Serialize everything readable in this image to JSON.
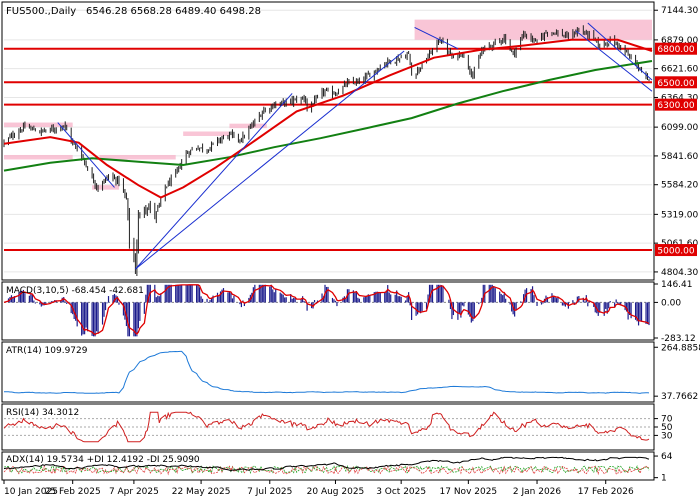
{
  "chart_data": {
    "type": "candlestick",
    "symbol": "FUS500.,Daily",
    "ohlc_text": "6546.28 6568.28 6489.40 6498.28",
    "x_range": [
      "2025-01-10",
      "2026-03-20"
    ],
    "x_ticks": [
      {
        "date": "2025-01-10",
        "label": "10 Jan 2025"
      },
      {
        "date": "2025-02-25",
        "label": "25 Feb 2025"
      },
      {
        "date": "2025-04-07",
        "label": "7 Apr 2025"
      },
      {
        "date": "2025-05-22",
        "label": "22 May 2025"
      },
      {
        "date": "2025-07-07",
        "label": "7 Jul 2025"
      },
      {
        "date": "2025-08-20",
        "label": "20 Aug 2025"
      },
      {
        "date": "2025-10-03",
        "label": "3 Oct 2025"
      },
      {
        "date": "2025-11-17",
        "label": "17 Nov 2025"
      },
      {
        "date": "2026-01-02",
        "label": "2 Jan 2026"
      },
      {
        "date": "2026-02-17",
        "label": "17 Feb 2026"
      }
    ],
    "price_range": [
      4750,
      7200
    ],
    "price_ticks": [
      "7144.30",
      "6879.00",
      "6621.60",
      "6364.30",
      "6099.00",
      "5841.60",
      "5584.20",
      "5319.00",
      "5061.60",
      "4804.30"
    ],
    "levels": [
      {
        "value": 6800,
        "label": "6800.00"
      },
      {
        "value": 6500,
        "label": "6500.00"
      },
      {
        "value": 6300,
        "label": "6300.00"
      },
      {
        "value": 5000,
        "label": "5000.00"
      }
    ],
    "close_path": [
      [
        "2025-01-10",
        5960
      ],
      [
        "2025-01-17",
        6040
      ],
      [
        "2025-01-24",
        6100
      ],
      [
        "2025-02-03",
        6060
      ],
      [
        "2025-02-12",
        6080
      ],
      [
        "2025-02-19",
        6120
      ],
      [
        "2025-02-25",
        5960
      ],
      [
        "2025-03-04",
        5820
      ],
      [
        "2025-03-10",
        5640
      ],
      [
        "2025-03-14",
        5560
      ],
      [
        "2025-03-21",
        5660
      ],
      [
        "2025-03-28",
        5620
      ],
      [
        "2025-04-02",
        5450
      ],
      [
        "2025-04-04",
        5100
      ],
      [
        "2025-04-08",
        4830
      ],
      [
        "2025-04-10",
        5280
      ],
      [
        "2025-04-15",
        5400
      ],
      [
        "2025-04-22",
        5320
      ],
      [
        "2025-04-28",
        5560
      ],
      [
        "2025-05-05",
        5680
      ],
      [
        "2025-05-12",
        5860
      ],
      [
        "2025-05-19",
        5920
      ],
      [
        "2025-05-26",
        5900
      ],
      [
        "2025-06-02",
        5980
      ],
      [
        "2025-06-10",
        6030
      ],
      [
        "2025-06-18",
        5990
      ],
      [
        "2025-06-25",
        6110
      ],
      [
        "2025-07-03",
        6250
      ],
      [
        "2025-07-10",
        6300
      ],
      [
        "2025-07-21",
        6330
      ],
      [
        "2025-07-31",
        6360
      ],
      [
        "2025-08-01",
        6250
      ],
      [
        "2025-08-12",
        6420
      ],
      [
        "2025-08-20",
        6400
      ],
      [
        "2025-08-28",
        6490
      ],
      [
        "2025-09-05",
        6500
      ],
      [
        "2025-09-15",
        6600
      ],
      [
        "2025-09-23",
        6680
      ],
      [
        "2025-10-01",
        6710
      ],
      [
        "2025-10-08",
        6750
      ],
      [
        "2025-10-10",
        6560
      ],
      [
        "2025-10-17",
        6650
      ],
      [
        "2025-10-24",
        6790
      ],
      [
        "2025-10-29",
        6890
      ],
      [
        "2025-11-06",
        6720
      ],
      [
        "2025-11-13",
        6760
      ],
      [
        "2025-11-20",
        6560
      ],
      [
        "2025-11-26",
        6780
      ],
      [
        "2025-12-05",
        6850
      ],
      [
        "2025-12-11",
        6900
      ],
      [
        "2025-12-17",
        6750
      ],
      [
        "2025-12-24",
        6930
      ],
      [
        "2026-01-02",
        6860
      ],
      [
        "2026-01-09",
        6960
      ],
      [
        "2026-01-16",
        6940
      ],
      [
        "2026-01-23",
        6900
      ],
      [
        "2026-01-30",
        6970
      ],
      [
        "2026-02-06",
        6920
      ],
      [
        "2026-02-13",
        6830
      ],
      [
        "2026-02-20",
        6870
      ],
      [
        "2026-02-27",
        6820
      ],
      [
        "2026-03-05",
        6720
      ],
      [
        "2026-03-10",
        6660
      ],
      [
        "2026-03-13",
        6580
      ],
      [
        "2026-03-18",
        6500
      ]
    ],
    "ma_red": [
      [
        "2025-01-10",
        5950
      ],
      [
        "2025-02-10",
        6010
      ],
      [
        "2025-03-01",
        5960
      ],
      [
        "2025-03-20",
        5760
      ],
      [
        "2025-04-10",
        5580
      ],
      [
        "2025-04-25",
        5470
      ],
      [
        "2025-05-10",
        5560
      ],
      [
        "2025-06-01",
        5740
      ],
      [
        "2025-06-25",
        5960
      ],
      [
        "2025-07-25",
        6240
      ],
      [
        "2025-08-25",
        6380
      ],
      [
        "2025-09-25",
        6560
      ],
      [
        "2025-10-25",
        6720
      ],
      [
        "2025-11-25",
        6790
      ],
      [
        "2025-12-25",
        6830
      ],
      [
        "2026-01-25",
        6880
      ],
      [
        "2026-02-25",
        6880
      ],
      [
        "2026-03-20",
        6780
      ]
    ],
    "ma_green": [
      [
        "2025-01-10",
        5710
      ],
      [
        "2025-02-10",
        5780
      ],
      [
        "2025-03-10",
        5820
      ],
      [
        "2025-04-10",
        5790
      ],
      [
        "2025-05-10",
        5760
      ],
      [
        "2025-06-10",
        5830
      ],
      [
        "2025-07-10",
        5920
      ],
      [
        "2025-08-10",
        6000
      ],
      [
        "2025-09-10",
        6090
      ],
      [
        "2025-10-10",
        6180
      ],
      [
        "2025-11-10",
        6310
      ],
      [
        "2025-12-10",
        6420
      ],
      [
        "2026-01-10",
        6520
      ],
      [
        "2026-02-10",
        6610
      ],
      [
        "2026-03-20",
        6690
      ]
    ],
    "zones": [
      {
        "from": "2025-01-10",
        "to": "2025-02-25",
        "lo": 6100,
        "hi": 6140
      },
      {
        "from": "2025-01-10",
        "to": "2025-02-25",
        "lo": 5810,
        "hi": 5850
      },
      {
        "from": "2025-03-15",
        "to": "2025-05-05",
        "lo": 5810,
        "hi": 5850
      },
      {
        "from": "2025-03-10",
        "to": "2025-03-28",
        "lo": 5540,
        "hi": 5580
      },
      {
        "from": "2025-05-10",
        "to": "2025-06-10",
        "lo": 6020,
        "hi": 6060
      },
      {
        "from": "2025-06-10",
        "to": "2025-07-05",
        "lo": 6090,
        "hi": 6130
      },
      {
        "from": "2025-10-12",
        "to": "2026-03-25",
        "lo": 6880,
        "hi": 7060
      }
    ],
    "trendlines": [
      {
        "from": [
          "2025-04-08",
          4830
        ],
        "to": [
          "2025-07-22",
          6400
        ]
      },
      {
        "from": [
          "2025-04-08",
          4830
        ],
        "to": [
          "2025-10-05",
          6780
        ]
      },
      {
        "from": [
          "2025-02-15",
          6140
        ],
        "to": [
          "2025-03-25",
          5560
        ]
      },
      {
        "from": [
          "2025-10-12",
          6990
        ],
        "to": [
          "2025-11-10",
          6800
        ]
      },
      {
        "from": [
          "2026-02-05",
          7030
        ],
        "to": [
          "2026-03-20",
          6520
        ]
      },
      {
        "from": [
          "2026-01-28",
          6960
        ],
        "to": [
          "2026-03-20",
          6420
        ]
      }
    ],
    "indicators": [
      {
        "name": "macd",
        "label": "MACD(3,10,5) -68.454 -42.681",
        "range": [
          -283.12,
          146.41
        ],
        "ticks": [
          "146.41",
          "0.00",
          "-283.12"
        ]
      },
      {
        "name": "atr",
        "label": "ATR(14) 109.9729",
        "range": [
          20,
          280
        ],
        "ticks": [
          "264.8858",
          "37.7662"
        ]
      },
      {
        "name": "rsi",
        "label": "RSI(14) 34.3012",
        "range": [
          0,
          100
        ],
        "ticks": [
          "70",
          "50",
          "30"
        ]
      },
      {
        "name": "adx",
        "label": "ADX(14) 19.5734 +DI 12.4192 -DI 25.9090",
        "range": [
          0,
          70
        ],
        "ticks": [
          "64",
          "1"
        ]
      }
    ]
  },
  "colors": {
    "candle": "#202020",
    "ma_red": "#e00000",
    "ma_green": "#128012",
    "level": "#e00000",
    "zone": "#f7b6cc",
    "trend": "#1a2fd0",
    "macd_bar": "#1c1c8c",
    "macd_signal": "#e00000",
    "atr": "#1e7ad8",
    "rsi": "#d02020",
    "adx": "#000000",
    "di_plus": "#1fa01f",
    "di_minus": "#e04040"
  }
}
